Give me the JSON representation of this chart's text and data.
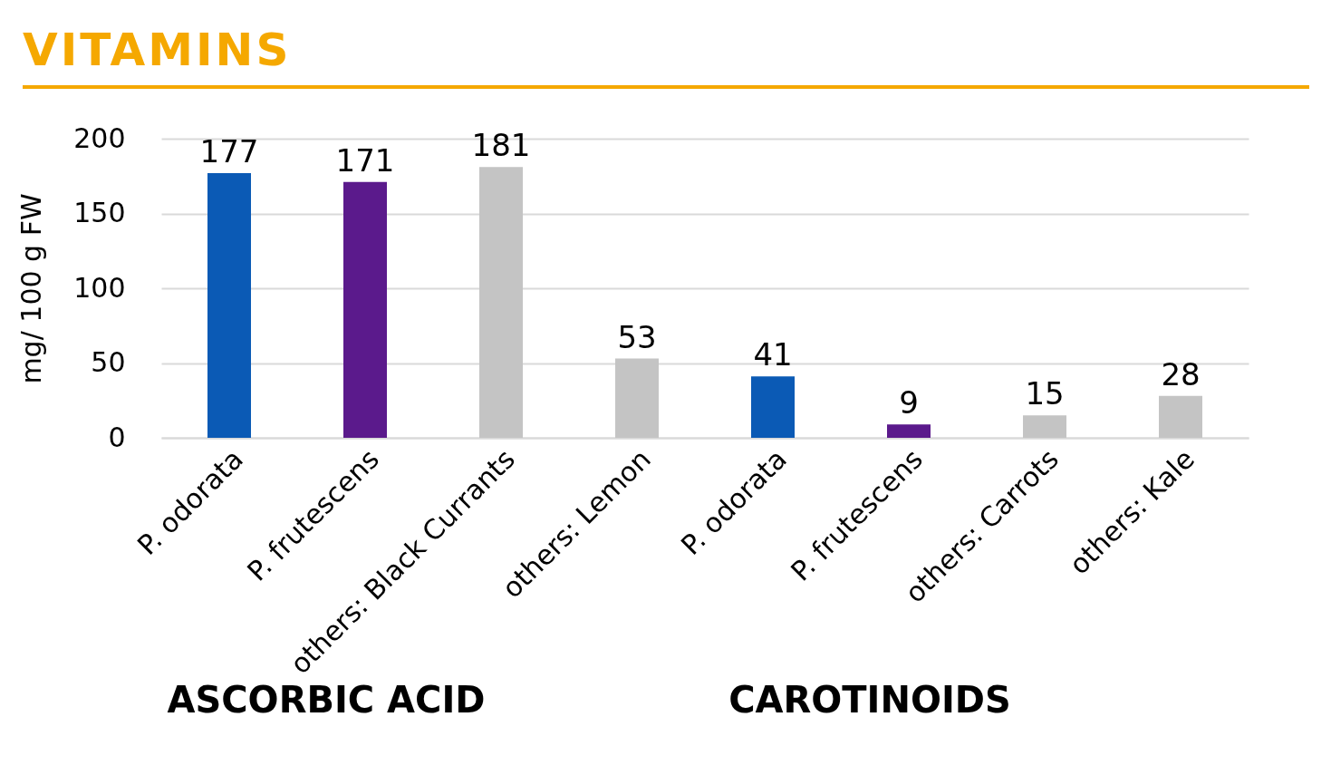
{
  "chart_data": {
    "type": "bar",
    "title": "VITAMINS",
    "ylabel": "mg/ 100 g FW",
    "categories": [
      "P. odorata",
      "P. frutescens",
      "others: Black Currants",
      "others: Lemon",
      "P. odorata",
      "P. frutescens",
      "others: Carrots",
      "others: Kale"
    ],
    "values": [
      177,
      171,
      181,
      53,
      41,
      9,
      15,
      28
    ],
    "colors": [
      "#0b5ab5",
      "#5b1a8c",
      "#c4c4c4",
      "#c4c4c4",
      "#0b5ab5",
      "#5b1a8c",
      "#c4c4c4",
      "#c4c4c4"
    ],
    "ylim": [
      0,
      200
    ],
    "yticks": [
      0,
      50,
      100,
      150,
      200
    ],
    "grid": "y",
    "data_labels": true,
    "annotations": [
      "ASCORBIC ACID",
      "CAROTINOIDS"
    ]
  }
}
